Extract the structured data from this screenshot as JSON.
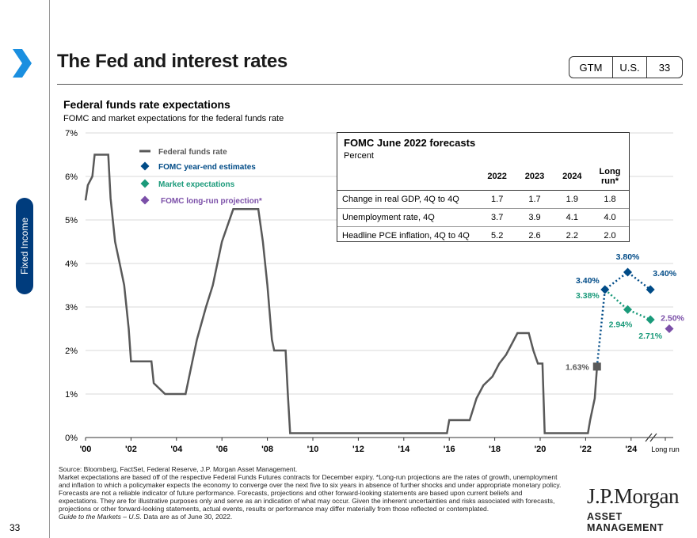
{
  "header": {
    "title": "The Fed and interest rates",
    "tags": [
      "GTM",
      "U.S.",
      "33"
    ]
  },
  "side_tab": "Fixed Income",
  "page_number": "33",
  "chart_title": "Federal funds rate expectations",
  "chart_subtitle": "FOMC and market expectations for the federal funds rate",
  "colors": {
    "ffr": "#595959",
    "fomc": "#004b87",
    "market": "#1a9a7a",
    "longrun": "#7b4fa8",
    "side_tab": "#003c7d",
    "chevron": "#1a8fe0"
  },
  "chart_data": {
    "type": "line",
    "ylim": [
      0,
      7
    ],
    "yticks": [
      "0%",
      "1%",
      "2%",
      "3%",
      "4%",
      "5%",
      "6%",
      "7%"
    ],
    "xticks": [
      "'00",
      "'02",
      "'04",
      "'06",
      "'08",
      "'10",
      "'12",
      "'14",
      "'16",
      "'18",
      "'20",
      "'22",
      "'24",
      "Long run"
    ],
    "legend": [
      "Federal funds rate",
      "FOMC year-end estimates",
      "Market expectations",
      "FOMC long-run projection*"
    ],
    "federal_funds_rate": [
      [
        2000.0,
        5.45
      ],
      [
        2000.1,
        5.8
      ],
      [
        2000.3,
        6.0
      ],
      [
        2000.4,
        6.5
      ],
      [
        2001.0,
        6.5
      ],
      [
        2001.1,
        5.5
      ],
      [
        2001.3,
        4.5
      ],
      [
        2001.5,
        4.0
      ],
      [
        2001.7,
        3.5
      ],
      [
        2001.9,
        2.5
      ],
      [
        2002.0,
        1.75
      ],
      [
        2002.9,
        1.75
      ],
      [
        2003.0,
        1.25
      ],
      [
        2003.5,
        1.0
      ],
      [
        2004.4,
        1.0
      ],
      [
        2004.6,
        1.5
      ],
      [
        2004.9,
        2.25
      ],
      [
        2005.3,
        3.0
      ],
      [
        2005.6,
        3.5
      ],
      [
        2006.0,
        4.5
      ],
      [
        2006.5,
        5.25
      ],
      [
        2007.6,
        5.25
      ],
      [
        2007.8,
        4.5
      ],
      [
        2008.0,
        3.5
      ],
      [
        2008.2,
        2.25
      ],
      [
        2008.3,
        2.0
      ],
      [
        2008.8,
        2.0
      ],
      [
        2008.9,
        1.0
      ],
      [
        2009.0,
        0.1
      ],
      [
        2015.9,
        0.1
      ],
      [
        2016.0,
        0.4
      ],
      [
        2016.9,
        0.4
      ],
      [
        2017.2,
        0.9
      ],
      [
        2017.5,
        1.2
      ],
      [
        2017.9,
        1.4
      ],
      [
        2018.2,
        1.7
      ],
      [
        2018.5,
        1.9
      ],
      [
        2018.8,
        2.2
      ],
      [
        2019.0,
        2.4
      ],
      [
        2019.5,
        2.4
      ],
      [
        2019.7,
        2.0
      ],
      [
        2019.9,
        1.7
      ],
      [
        2020.1,
        1.7
      ],
      [
        2020.2,
        0.1
      ],
      [
        2022.1,
        0.1
      ],
      [
        2022.2,
        0.4
      ],
      [
        2022.4,
        0.9
      ],
      [
        2022.5,
        1.63
      ]
    ],
    "fomc_year_end": [
      {
        "x": "2022",
        "value": 3.4,
        "label": "3.40%"
      },
      {
        "x": "2023",
        "value": 3.8,
        "label": "3.80%"
      },
      {
        "x": "2024",
        "value": 3.4,
        "label": "3.40%"
      }
    ],
    "market_expectations": [
      {
        "x": "2023",
        "value": 2.94,
        "label": "2.94%"
      },
      {
        "x": "2024",
        "value": 2.71,
        "label": "2.71%"
      }
    ],
    "market_start_label": "3.38%",
    "current_rate": {
      "value": 1.63,
      "label": "1.63%"
    },
    "long_run": {
      "value": 2.5,
      "label": "2.50%"
    }
  },
  "forecast_table": {
    "title": "FOMC June 2022 forecasts",
    "subtitle": "Percent",
    "headers": [
      "2022",
      "2023",
      "2024",
      "Long run*"
    ],
    "rows": [
      {
        "label": "Change in real GDP, 4Q to 4Q",
        "values": [
          "1.7",
          "1.7",
          "1.9",
          "1.8"
        ]
      },
      {
        "label": "Unemployment rate, 4Q",
        "values": [
          "3.7",
          "3.9",
          "4.1",
          "4.0"
        ]
      },
      {
        "label": "Headline PCE inflation, 4Q to 4Q",
        "values": [
          "5.2",
          "2.6",
          "2.2",
          "2.0"
        ]
      }
    ]
  },
  "source_lines": [
    "Source: Bloomberg, FactSet, Federal Reserve, J.P. Morgan Asset Management.",
    "Market expectations are based off of the respective Federal Funds Futures contracts for December expiry. *Long-run projections are the rates of growth, unemployment and inflation to which a policymaker expects the economy to converge over the next five to six years in absence of further shocks and under appropriate monetary policy. Forecasts are not a reliable indicator of future performance. Forecasts, projections and other forward-looking statements are based upon current beliefs and expectations. They are for illustrative purposes only and serve as an indication of what may occur. Given the inherent uncertainties and risks associated with forecasts, projections or other forward-looking statements, actual events, results or performance may differ materially from those reflected or contemplated."
  ],
  "source_footer_italic": "Guide to the Markets – U.S.",
  "source_footer_rest": " Data are as of June 30, 2022.",
  "logo": {
    "line1": "J.P.Morgan",
    "line2": "ASSET MANAGEMENT"
  }
}
